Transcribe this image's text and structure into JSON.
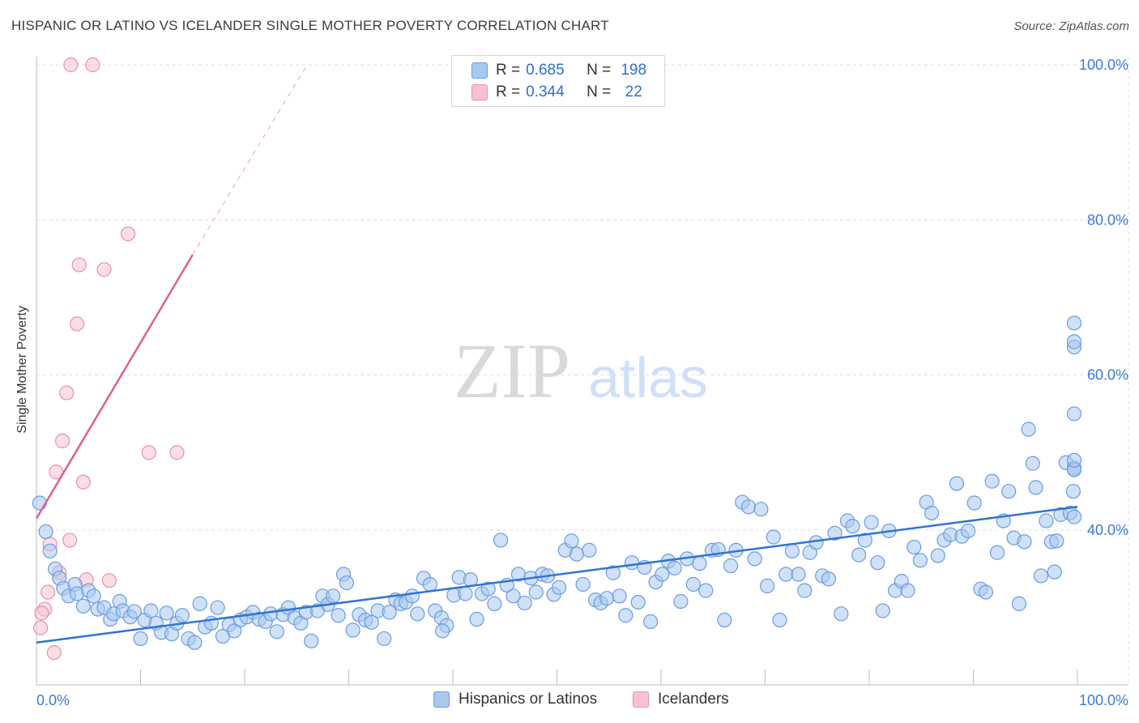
{
  "title": "HISPANIC OR LATINO VS ICELANDER SINGLE MOTHER POVERTY CORRELATION CHART",
  "source": "Source: ZipAtlas.com",
  "watermark": {
    "zip": "ZIP",
    "atlas": "atlas"
  },
  "colors": {
    "blue_fill": "#a9c8f0",
    "blue_stroke": "#6a9ce0",
    "blue_line": "#2f74d0",
    "pink_fill": "#f6c2d1",
    "pink_stroke": "#ec8fa9",
    "pink_line": "#e0608a",
    "axis_text": "#3a7bd5",
    "grid": "#dddddd"
  },
  "legend_top": {
    "rows": [
      {
        "r_label": "R =",
        "r_value": "0.685",
        "n_label": "N =",
        "n_value": "198"
      },
      {
        "r_label": "R =",
        "r_value": "0.344",
        "n_label": "N =",
        "n_value": "22"
      }
    ]
  },
  "legend_bottom": {
    "series1": "Hispanics or Latinos",
    "series2": "Icelanders"
  },
  "chart_data": {
    "type": "scatter",
    "title": "HISPANIC OR LATINO VS ICELANDER SINGLE MOTHER POVERTY CORRELATION CHART",
    "xlabel": "",
    "ylabel": "Single Mother Poverty",
    "xlim": [
      0,
      100
    ],
    "ylim": [
      18,
      100
    ],
    "x_tick_labels": [
      "0.0%",
      "100.0%"
    ],
    "y_ticks": [
      40,
      60,
      80,
      100
    ],
    "y_tick_labels": [
      "40.0%",
      "60.0%",
      "80.0%",
      "100.0%"
    ],
    "grid": true,
    "series": [
      {
        "name": "Hispanics or Latinos",
        "R": 0.685,
        "N": 198,
        "trend": {
          "x0": 0,
          "y0": 25.5,
          "x1": 100,
          "y1": 43.0
        },
        "points": [
          [
            0.3,
            43.5
          ],
          [
            0.9,
            39.8
          ],
          [
            1.3,
            37.3
          ],
          [
            1.8,
            35.0
          ],
          [
            2.2,
            33.8
          ],
          [
            2.6,
            32.5
          ],
          [
            3.1,
            31.5
          ],
          [
            3.7,
            33.0
          ],
          [
            3.9,
            31.8
          ],
          [
            4.5,
            30.2
          ],
          [
            5.0,
            32.2
          ],
          [
            5.5,
            31.5
          ],
          [
            5.9,
            29.8
          ],
          [
            6.5,
            30.0
          ],
          [
            7.1,
            28.5
          ],
          [
            7.4,
            29.2
          ],
          [
            8.0,
            30.8
          ],
          [
            8.3,
            29.6
          ],
          [
            9.0,
            28.8
          ],
          [
            9.4,
            29.5
          ],
          [
            10.0,
            26.0
          ],
          [
            10.4,
            28.4
          ],
          [
            11.0,
            29.6
          ],
          [
            11.5,
            28.0
          ],
          [
            12.0,
            26.8
          ],
          [
            12.5,
            29.3
          ],
          [
            13.0,
            26.6
          ],
          [
            13.5,
            28.0
          ],
          [
            14.0,
            29.0
          ],
          [
            14.6,
            26.0
          ],
          [
            15.2,
            25.5
          ],
          [
            15.7,
            30.5
          ],
          [
            16.2,
            27.5
          ],
          [
            16.8,
            28.0
          ],
          [
            17.4,
            30.0
          ],
          [
            17.9,
            26.3
          ],
          [
            18.5,
            27.8
          ],
          [
            19.0,
            27.0
          ],
          [
            19.6,
            28.4
          ],
          [
            20.2,
            28.8
          ],
          [
            20.8,
            29.4
          ],
          [
            21.4,
            28.5
          ],
          [
            22.0,
            28.2
          ],
          [
            22.5,
            29.2
          ],
          [
            23.1,
            26.9
          ],
          [
            23.7,
            29.1
          ],
          [
            24.2,
            30.0
          ],
          [
            24.8,
            28.7
          ],
          [
            25.4,
            28.0
          ],
          [
            25.9,
            29.4
          ],
          [
            26.4,
            25.7
          ],
          [
            27.0,
            29.6
          ],
          [
            27.5,
            31.5
          ],
          [
            28.0,
            30.4
          ],
          [
            28.5,
            31.5
          ],
          [
            29.0,
            29.0
          ],
          [
            29.5,
            34.3
          ],
          [
            29.8,
            33.2
          ],
          [
            30.4,
            27.1
          ],
          [
            31.0,
            29.1
          ],
          [
            31.6,
            28.4
          ],
          [
            32.2,
            28.1
          ],
          [
            32.8,
            29.6
          ],
          [
            33.4,
            26.0
          ],
          [
            33.9,
            29.4
          ],
          [
            34.5,
            31.0
          ],
          [
            35.0,
            30.5
          ],
          [
            35.5,
            30.7
          ],
          [
            36.1,
            31.5
          ],
          [
            36.6,
            29.2
          ],
          [
            37.2,
            33.8
          ],
          [
            37.8,
            33.0
          ],
          [
            38.3,
            29.6
          ],
          [
            38.9,
            28.7
          ],
          [
            39.4,
            27.7
          ],
          [
            39.0,
            27.0
          ],
          [
            40.1,
            31.6
          ],
          [
            40.6,
            33.9
          ],
          [
            41.2,
            31.8
          ],
          [
            41.7,
            33.6
          ],
          [
            42.3,
            28.5
          ],
          [
            42.8,
            31.8
          ],
          [
            43.4,
            32.4
          ],
          [
            44.0,
            30.5
          ],
          [
            44.6,
            38.7
          ],
          [
            45.2,
            32.9
          ],
          [
            45.8,
            31.5
          ],
          [
            46.3,
            34.3
          ],
          [
            46.9,
            30.6
          ],
          [
            47.5,
            33.8
          ],
          [
            48.0,
            32.0
          ],
          [
            48.6,
            34.3
          ],
          [
            49.1,
            34.1
          ],
          [
            49.7,
            31.7
          ],
          [
            50.2,
            32.6
          ],
          [
            50.8,
            37.4
          ],
          [
            51.4,
            38.6
          ],
          [
            51.9,
            36.9
          ],
          [
            52.5,
            33.0
          ],
          [
            53.1,
            37.4
          ],
          [
            53.7,
            31.0
          ],
          [
            54.2,
            30.6
          ],
          [
            54.8,
            31.2
          ],
          [
            55.4,
            34.5
          ],
          [
            56.0,
            31.5
          ],
          [
            56.6,
            29.0
          ],
          [
            57.2,
            35.8
          ],
          [
            57.8,
            30.7
          ],
          [
            58.4,
            35.2
          ],
          [
            59.0,
            28.2
          ],
          [
            59.5,
            33.3
          ],
          [
            60.1,
            34.3
          ],
          [
            60.7,
            36.0
          ],
          [
            61.3,
            35.1
          ],
          [
            61.9,
            30.8
          ],
          [
            62.5,
            36.3
          ],
          [
            63.1,
            33.0
          ],
          [
            63.7,
            35.7
          ],
          [
            64.3,
            32.2
          ],
          [
            64.9,
            37.4
          ],
          [
            65.5,
            37.5
          ],
          [
            66.1,
            28.4
          ],
          [
            66.7,
            35.4
          ],
          [
            67.2,
            37.4
          ],
          [
            67.8,
            43.6
          ],
          [
            68.4,
            43.0
          ],
          [
            69.0,
            36.3
          ],
          [
            69.6,
            42.7
          ],
          [
            70.2,
            32.8
          ],
          [
            70.8,
            39.1
          ],
          [
            71.4,
            28.4
          ],
          [
            72.0,
            34.3
          ],
          [
            72.6,
            37.3
          ],
          [
            73.2,
            34.3
          ],
          [
            73.8,
            32.2
          ],
          [
            74.3,
            37.1
          ],
          [
            74.9,
            38.4
          ],
          [
            75.5,
            34.1
          ],
          [
            76.1,
            33.7
          ],
          [
            76.7,
            39.6
          ],
          [
            77.3,
            29.2
          ],
          [
            77.9,
            41.2
          ],
          [
            78.4,
            40.5
          ],
          [
            79.0,
            36.8
          ],
          [
            79.6,
            38.7
          ],
          [
            80.2,
            41.0
          ],
          [
            80.8,
            35.8
          ],
          [
            81.3,
            29.6
          ],
          [
            81.9,
            39.9
          ],
          [
            82.5,
            32.2
          ],
          [
            83.1,
            33.4
          ],
          [
            83.7,
            32.2
          ],
          [
            84.3,
            37.8
          ],
          [
            84.9,
            36.1
          ],
          [
            85.5,
            43.6
          ],
          [
            86.0,
            42.2
          ],
          [
            86.6,
            36.7
          ],
          [
            87.2,
            38.7
          ],
          [
            87.8,
            39.4
          ],
          [
            88.4,
            46.0
          ],
          [
            88.9,
            39.2
          ],
          [
            89.5,
            39.9
          ],
          [
            90.1,
            43.5
          ],
          [
            90.7,
            32.4
          ],
          [
            91.2,
            32.0
          ],
          [
            91.8,
            46.3
          ],
          [
            92.3,
            37.1
          ],
          [
            92.9,
            41.2
          ],
          [
            93.4,
            45.0
          ],
          [
            93.9,
            39.0
          ],
          [
            94.4,
            30.5
          ],
          [
            94.9,
            38.5
          ],
          [
            95.3,
            53.0
          ],
          [
            95.7,
            48.6
          ],
          [
            96.0,
            45.5
          ],
          [
            96.5,
            34.1
          ],
          [
            97.0,
            41.2
          ],
          [
            97.5,
            38.5
          ],
          [
            97.8,
            34.6
          ],
          [
            98.0,
            38.6
          ],
          [
            98.4,
            42.0
          ],
          [
            98.9,
            48.7
          ],
          [
            99.3,
            42.2
          ],
          [
            99.6,
            45.0
          ],
          [
            100.0,
            48.0
          ],
          [
            100.4,
            41.7
          ],
          [
            100.8,
            47.8
          ],
          [
            101.2,
            47.8
          ],
          [
            101.5,
            49.0
          ],
          [
            101.8,
            66.7
          ],
          [
            102.0,
            63.6
          ],
          [
            102.4,
            64.3
          ],
          [
            101.4,
            55.0
          ]
        ]
      },
      {
        "name": "Icelanders",
        "R": 0.344,
        "N": 22,
        "trend": {
          "x0": 0,
          "y0": 41.5,
          "x1": 15.0,
          "y1": 75.5,
          "dash_to_x": 26.0,
          "dash_to_y": 100.0
        },
        "points": [
          [
            3.3,
            100.0
          ],
          [
            5.4,
            100.0
          ],
          [
            8.8,
            78.2
          ],
          [
            4.1,
            74.2
          ],
          [
            6.5,
            73.6
          ],
          [
            3.9,
            66.6
          ],
          [
            2.9,
            57.7
          ],
          [
            2.5,
            51.5
          ],
          [
            10.8,
            50.0
          ],
          [
            13.5,
            50.0
          ],
          [
            1.9,
            47.5
          ],
          [
            4.5,
            46.2
          ],
          [
            2.2,
            34.5
          ],
          [
            1.3,
            38.2
          ],
          [
            3.2,
            38.7
          ],
          [
            4.8,
            33.6
          ],
          [
            7.0,
            33.5
          ],
          [
            1.1,
            32.0
          ],
          [
            0.8,
            29.8
          ],
          [
            0.5,
            29.3
          ],
          [
            0.4,
            27.4
          ],
          [
            1.7,
            24.2
          ]
        ]
      }
    ]
  }
}
